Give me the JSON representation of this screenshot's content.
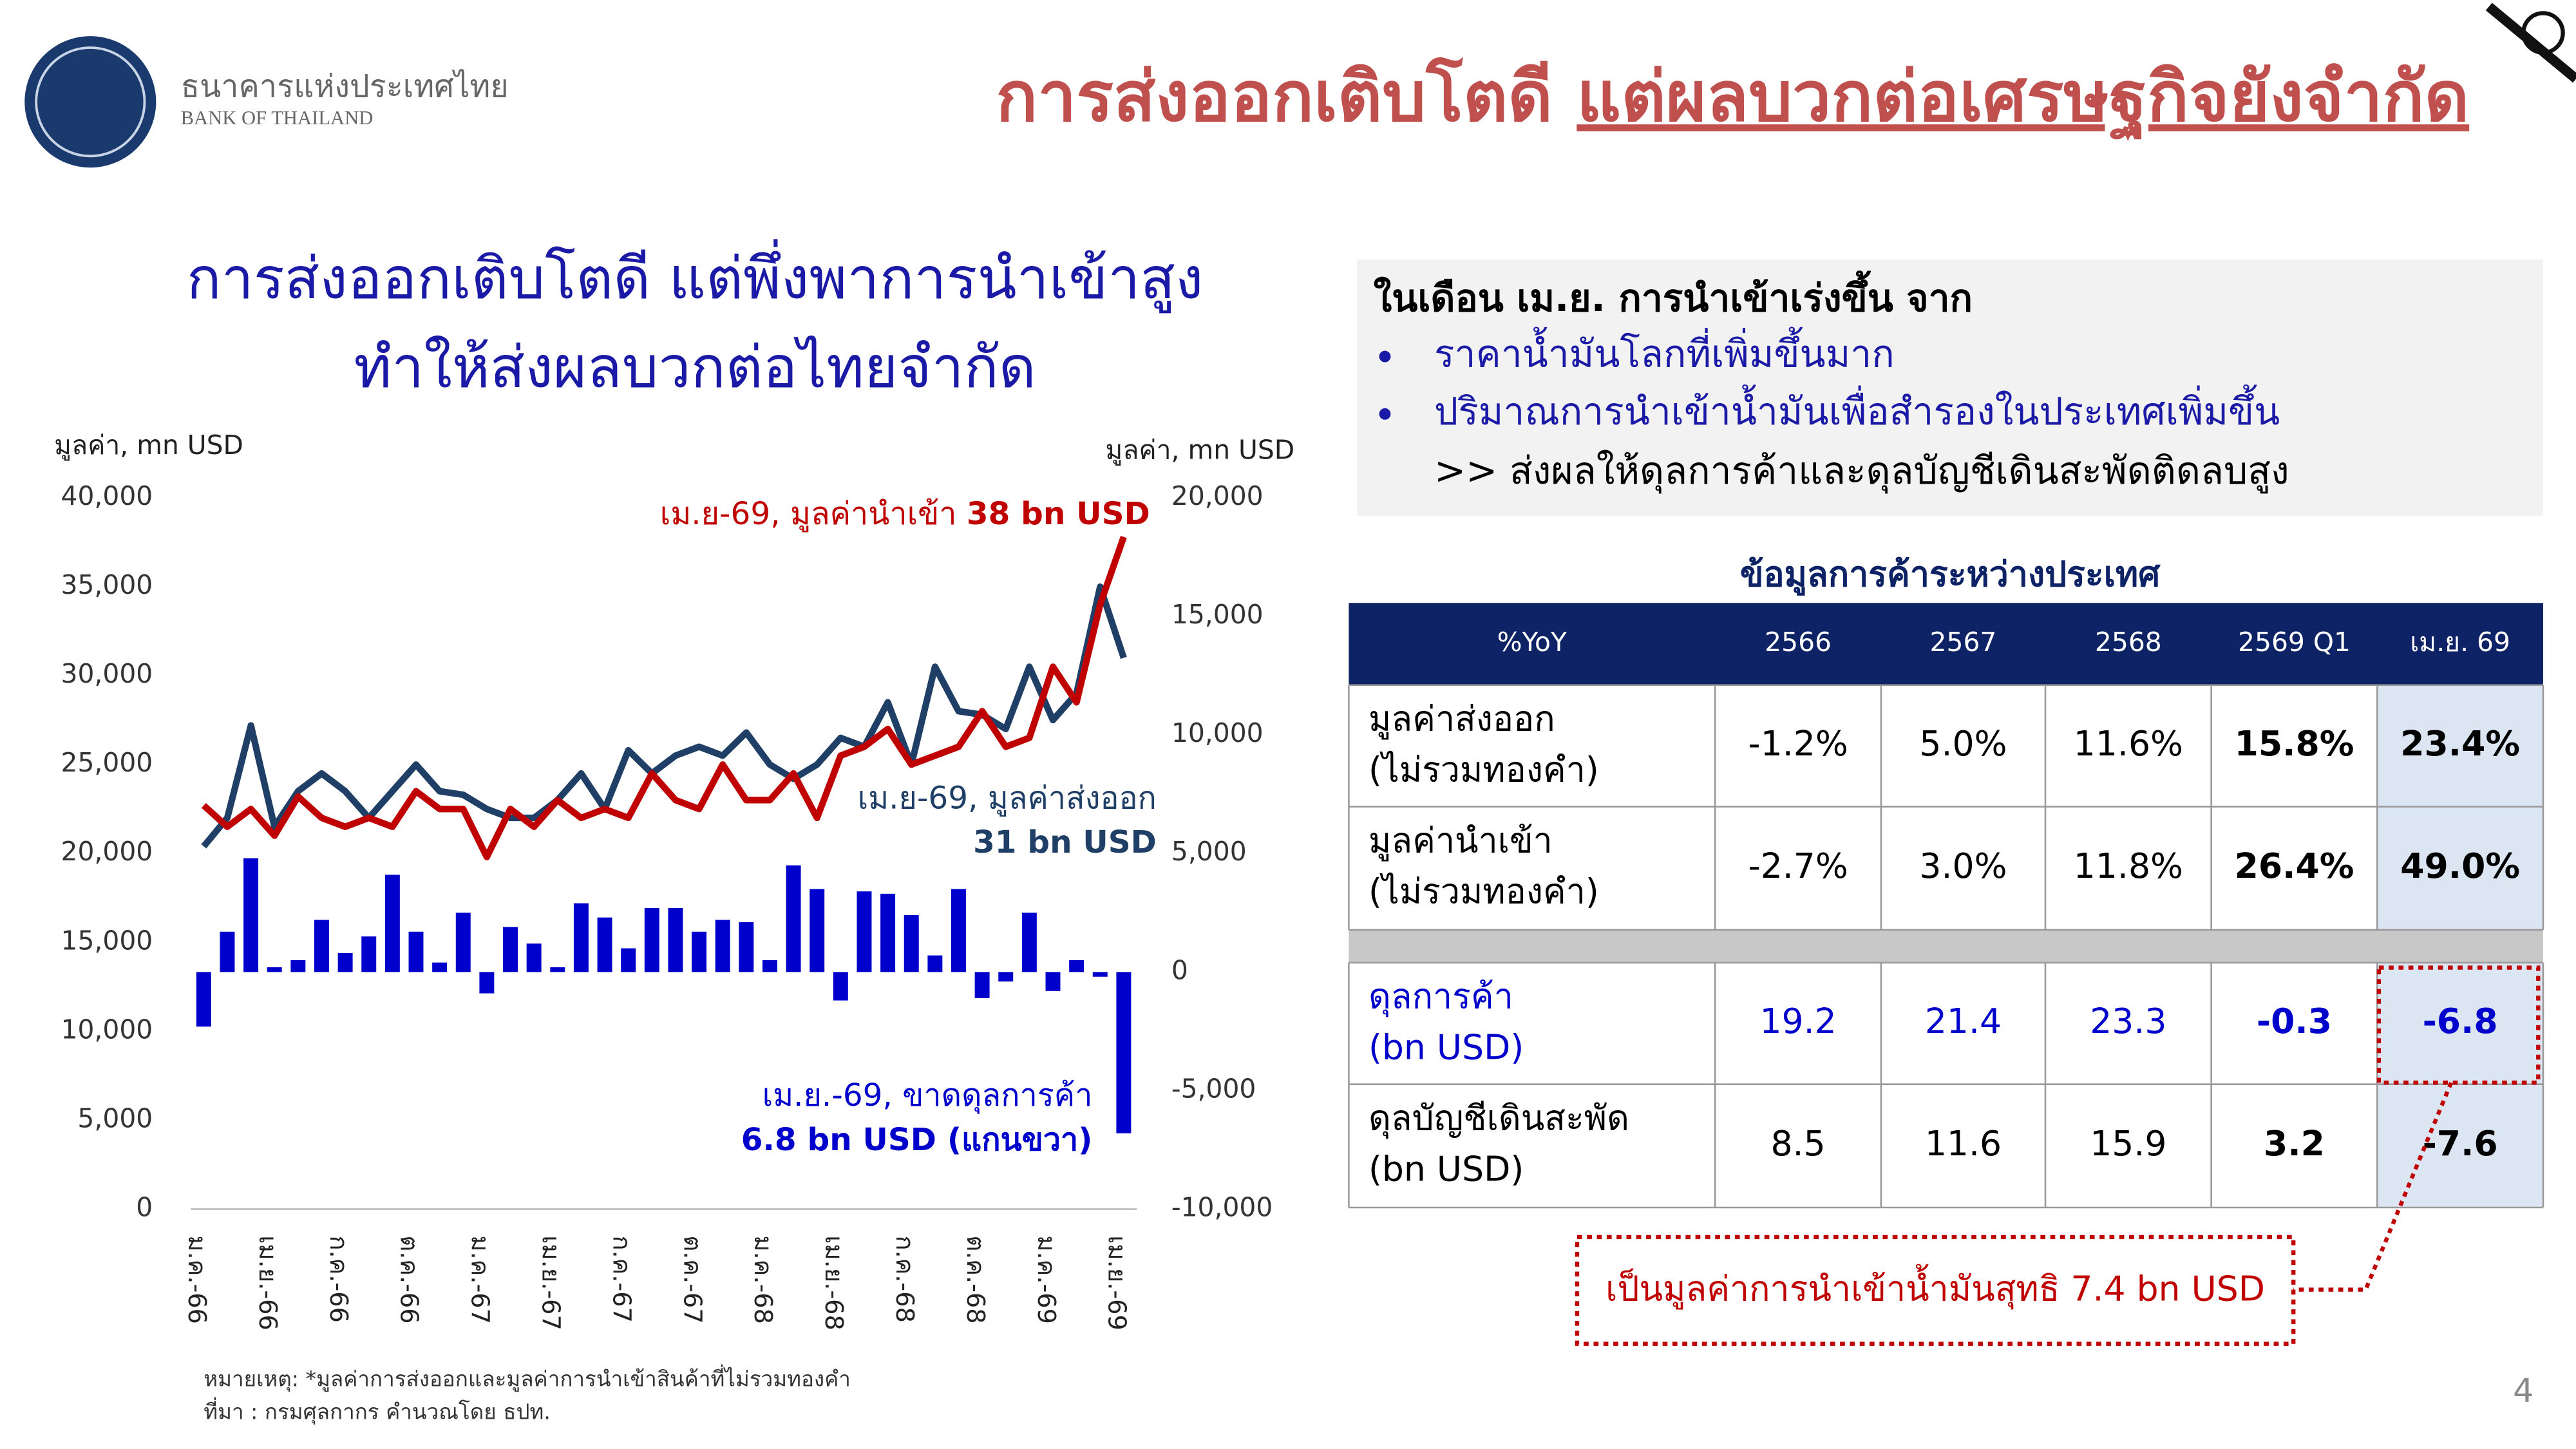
{
  "header": {
    "org_th": "ธนาคารแห่งประเทศไทย",
    "org_en": "BANK OF THAILAND",
    "title_plain": "การส่งออกเติบโตดี",
    "title_underlined": "แต่ผลบวกต่อเศรษฐกิจยังจำกัด"
  },
  "chart_data": {
    "type": "combo",
    "title": [
      "การส่งออกเติบโตดี แต่พึ่งพาการนำเข้าสูง",
      "ทำให้ส่งผลบวกต่อไทยจำกัด"
    ],
    "y_label": "มูลค่า, mn USD",
    "y2_label": "มูลค่า, mn USD",
    "categories": [
      "ม.ค.-66",
      null,
      null,
      "เม.ย.-66",
      null,
      null,
      "ก.ค.-66",
      null,
      null,
      "ต.ค.-66",
      null,
      null,
      "ม.ค.-67",
      null,
      null,
      "เม.ย.-67",
      null,
      null,
      "ก.ค.-67",
      null,
      null,
      "ต.ค.-67",
      null,
      null,
      "ม.ค.-68",
      null,
      null,
      "เม.ย.-68",
      null,
      null,
      "ก.ค.-68",
      null,
      null,
      "ต.ค.-68",
      null,
      null,
      "ม.ค.-69",
      null,
      null,
      "เม.ย.-69"
    ],
    "ylim": [
      0,
      40000
    ],
    "yticks": [
      0,
      {
        "value": 5000,
        "label": "5,000"
      },
      {
        "value": 10000,
        "label": "10,000"
      },
      {
        "value": 15000,
        "label": "15,000"
      },
      {
        "value": 20000,
        "label": "20,000"
      },
      {
        "value": 25000,
        "label": "25,000"
      },
      {
        "value": 30000,
        "label": "30,000"
      },
      {
        "value": 35000,
        "label": "35,000"
      },
      {
        "value": 40000,
        "label": "40,000"
      }
    ],
    "y2lim": [
      -10000,
      20000
    ],
    "y2ticks": [
      {
        "value": -10000,
        "label": "-10,000"
      },
      {
        "value": -5000,
        "label": "-5,000"
      },
      0,
      {
        "value": 5000,
        "label": "5,000"
      },
      {
        "value": 10000,
        "label": "10,000"
      },
      {
        "value": 15000,
        "label": "15,000"
      },
      {
        "value": 20000,
        "label": "20,000"
      }
    ],
    "grid": false,
    "series": [
      {
        "type": "bar",
        "axis": "y2",
        "color": "#0000cc",
        "values": [
          -2300,
          1700,
          4800,
          200,
          500,
          2200,
          800,
          1500,
          4100,
          1700,
          400,
          2500,
          -900,
          1900,
          1200,
          200,
          2900,
          2300,
          1000,
          2700,
          2700,
          1700,
          2200,
          2100,
          500,
          4500,
          3500,
          -1200,
          3400,
          3300,
          2400,
          700,
          3500,
          -1100,
          -400,
          2500,
          -800,
          500,
          -200,
          -6800
        ]
      },
      {
        "type": "line",
        "color": "#1f3f66",
        "values": [
          20400,
          22000,
          27200,
          21500,
          23500,
          24500,
          23500,
          22000,
          23500,
          25000,
          23500,
          23300,
          22500,
          22000,
          22000,
          23000,
          24500,
          22500,
          25800,
          24500,
          25500,
          26000,
          25500,
          26800,
          25000,
          24200,
          25000,
          26500,
          26000,
          28500,
          25000,
          30500,
          28000,
          27800,
          27000,
          30500,
          27500,
          29000,
          35000,
          31000
        ]
      },
      {
        "type": "line",
        "color": "#c00000",
        "values": [
          22700,
          21500,
          22500,
          21000,
          23200,
          22000,
          21500,
          22000,
          21500,
          23500,
          22500,
          22500,
          19800,
          22500,
          21500,
          23000,
          22000,
          22500,
          22000,
          24500,
          23000,
          22500,
          25000,
          23000,
          23000,
          24500,
          22000,
          25500,
          26000,
          27000,
          25000,
          25500,
          26000,
          28000,
          26000,
          26500,
          30500,
          28500,
          34000,
          37800
        ]
      }
    ],
    "annotations": [
      {
        "text": "เม.ย-69, มูลค่านำเข้า",
        "bold": "38 bn USD",
        "color": "#c00000"
      },
      {
        "text": "เม.ย-69, มูลค่าส่งออก",
        "bold": "31 bn USD",
        "color": "#1f3f66"
      },
      {
        "text": "เม.ย.-69, ขาดดุลการค้า",
        "bold": "6.8 bn USD (แกนขวา)",
        "color": "#0000cc"
      }
    ],
    "notes": [
      "หมายเหตุ: *มูลค่าการส่งออกและมูลค่าการนำเข้าสินค้าที่ไม่รวมทองคำ",
      "ที่มา : กรมศุลกากร คำนวณโดย ธปท."
    ]
  },
  "summary": {
    "lead": "ในเดือน เม.ย. การนำเข้าเร่งขึ้น จาก",
    "bullets": [
      "ราคาน้ำมันโลกที่เพิ่มขึ้นมาก",
      "ปริมาณการนำเข้าน้ำมันเพื่อสำรองในประเทศเพิ่มขึ้น"
    ],
    "conclusion": ">> ส่งผลให้ดุลการค้าและดุลบัญชีเดินสะพัดติดลบสูง"
  },
  "table": {
    "title": "ข้อมูลการค้าระหว่างประเทศ",
    "header": [
      "%YoY",
      "2566",
      "2567",
      "2568",
      "2569 Q1",
      "เม.ย. 69"
    ],
    "rows": [
      {
        "label": [
          "มูลค่าส่งออก",
          "(ไม่รวมทองคำ)"
        ],
        "cells": [
          "-1.2%",
          "5.0%",
          "11.6%",
          "15.8%",
          "23.4%"
        ]
      },
      {
        "label": [
          "มูลค่านำเข้า",
          "(ไม่รวมทองคำ)"
        ],
        "cells": [
          "-2.7%",
          "3.0%",
          "11.8%",
          "26.4%",
          "49.0%"
        ]
      },
      {
        "label": [
          "ดุลการค้า",
          "(bn USD)"
        ],
        "cells": [
          "19.2",
          "21.4",
          "23.3",
          "-0.3",
          "-6.8"
        ]
      },
      {
        "label": [
          "ดุลบัญชีเดินสะพัด",
          "(bn USD)"
        ],
        "cells": [
          "8.5",
          "11.6",
          "15.9",
          "3.2",
          "-7.6"
        ]
      }
    ],
    "callout": "เป็นมูลค่าการนำเข้าน้ำมันสุทธิ 7.4 bn USD"
  },
  "page_number": "4"
}
